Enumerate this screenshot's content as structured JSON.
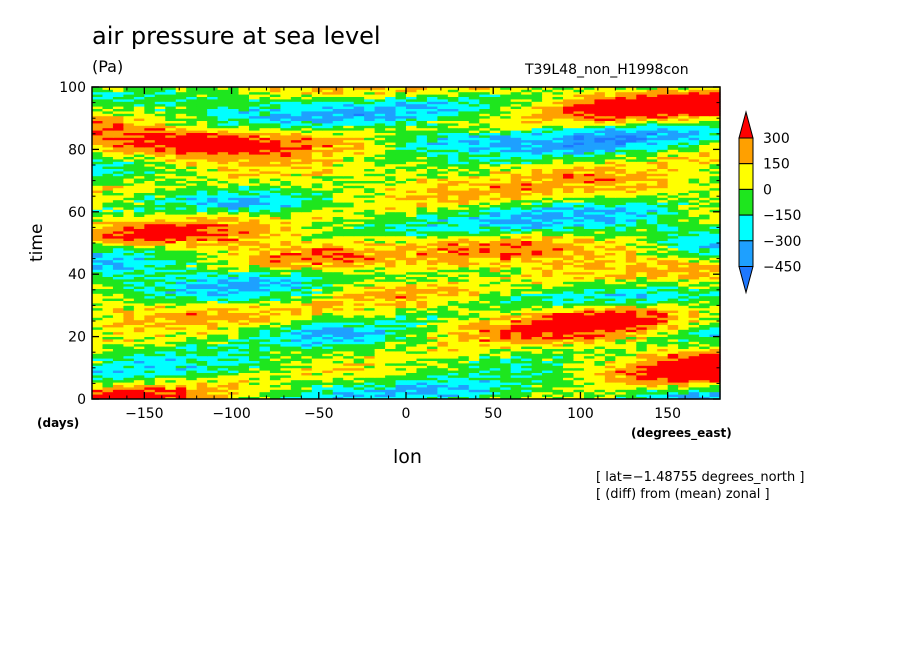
{
  "header": {
    "title": "air pressure at sea level",
    "units": "(Pa)",
    "run_name": "T39L48_non_H1998con"
  },
  "annotations": {
    "y_unit": "(days)",
    "x_unit": "(degrees_east)",
    "note_lat": "[ lat=−1.48755 degrees_north ]",
    "note_diff": "[ (diff) from (mean) zonal ]"
  },
  "chart_data": {
    "type": "heatmap",
    "title": "air pressure at sea level",
    "subtitle": "(Pa)",
    "xlabel": "lon",
    "ylabel": "time",
    "xlim": [
      -180,
      180
    ],
    "ylim": [
      0,
      100
    ],
    "x_ticks": [
      -150,
      -100,
      -50,
      0,
      50,
      100,
      150
    ],
    "x_tick_labels": [
      "−150",
      "−100",
      "−50",
      "0",
      "50",
      "100",
      "150"
    ],
    "y_ticks": [
      0,
      20,
      40,
      60,
      80,
      100
    ],
    "y_tick_labels": [
      "0",
      "20",
      "40",
      "60",
      "80",
      "100"
    ],
    "colorbar": {
      "levels": [
        -450,
        -300,
        -150,
        0,
        150,
        300
      ],
      "level_labels": [
        "−450",
        "−300",
        "−150",
        "0",
        "150",
        "300"
      ],
      "colors": [
        "#1e78ff",
        "#1ea0ff",
        "#00ffff",
        "#1ee61e",
        "#ffff00",
        "#ffa000",
        "#ff0000"
      ],
      "extend": "both"
    },
    "anomaly_features": [
      {
        "lon": 115,
        "time": 27,
        "value": 320
      },
      {
        "lon": -110,
        "time": 82,
        "value": 200
      },
      {
        "lon": -140,
        "time": 53,
        "value": 180
      },
      {
        "lon": -20,
        "time": 36,
        "value": 200
      },
      {
        "lon": -40,
        "time": 20,
        "value": -320
      },
      {
        "lon": 20,
        "time": 83,
        "value": -280
      },
      {
        "lon": -80,
        "time": 63,
        "value": -260
      },
      {
        "lon": -5,
        "time": 47,
        "value": -200
      },
      {
        "lon": 30,
        "time": 3,
        "value": -240
      },
      {
        "lon": 150,
        "time": 7,
        "value": 220
      }
    ]
  }
}
